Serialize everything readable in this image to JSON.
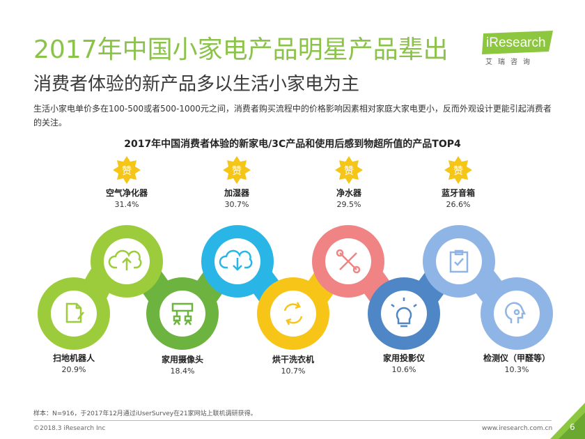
{
  "header": {
    "title": "2017年中国小家电产品明星产品辈出",
    "subtitle": "消费者体验的新产品多以生活小家电为主",
    "description": "生活小家电单价多在100-500或者500-1000元之间，消费者购买流程中的价格影响因素相对家庭大家电更小，反而外观设计更能引起消费者的关注。"
  },
  "logo": {
    "brand": "iResearch",
    "sub": "艾瑞咨询"
  },
  "chart": {
    "title": "2017年中国消费者体验的新家电/3C产品和使用后感到物超所值的产品TOP4",
    "badge_char": "赞",
    "top4": [
      {
        "name": "空气净化器",
        "pct": "31.4%"
      },
      {
        "name": "加湿器",
        "pct": "30.7%"
      },
      {
        "name": "净水器",
        "pct": "29.5%"
      },
      {
        "name": "蓝牙音箱",
        "pct": "26.6%"
      }
    ],
    "others": [
      {
        "name": "扫地机器人",
        "pct": "20.9%"
      },
      {
        "name": "家用摄像头",
        "pct": "18.4%"
      },
      {
        "name": "烘干洗衣机",
        "pct": "10.7%"
      },
      {
        "name": "家用投影仪",
        "pct": "10.6%"
      },
      {
        "name": "检测仪（甲醛等）",
        "pct": "10.3%"
      }
    ],
    "icons": [
      "document-icon",
      "cloud-upload-icon",
      "network-icon",
      "cloud-download-icon",
      "refresh-icon",
      "tools-icon",
      "lightbulb-icon",
      "checklist-icon",
      "head-icon"
    ],
    "colors": {
      "green_light": "#9ccc3c",
      "green": "#6cb33f",
      "cyan": "#29b6e6",
      "yellow": "#f7c418",
      "salmon": "#f08484",
      "blue": "#4f86c6",
      "light_blue": "#8fb4e6",
      "badge": "#f5c518"
    }
  },
  "footer": {
    "footnote": "样本：N=916，于2017年12月通过iUserSurvey在21家网站上联机调研获得。",
    "copyright": "©2018.3 iResearch Inc",
    "site": "www.iresearch.com.cn",
    "page": "6"
  }
}
